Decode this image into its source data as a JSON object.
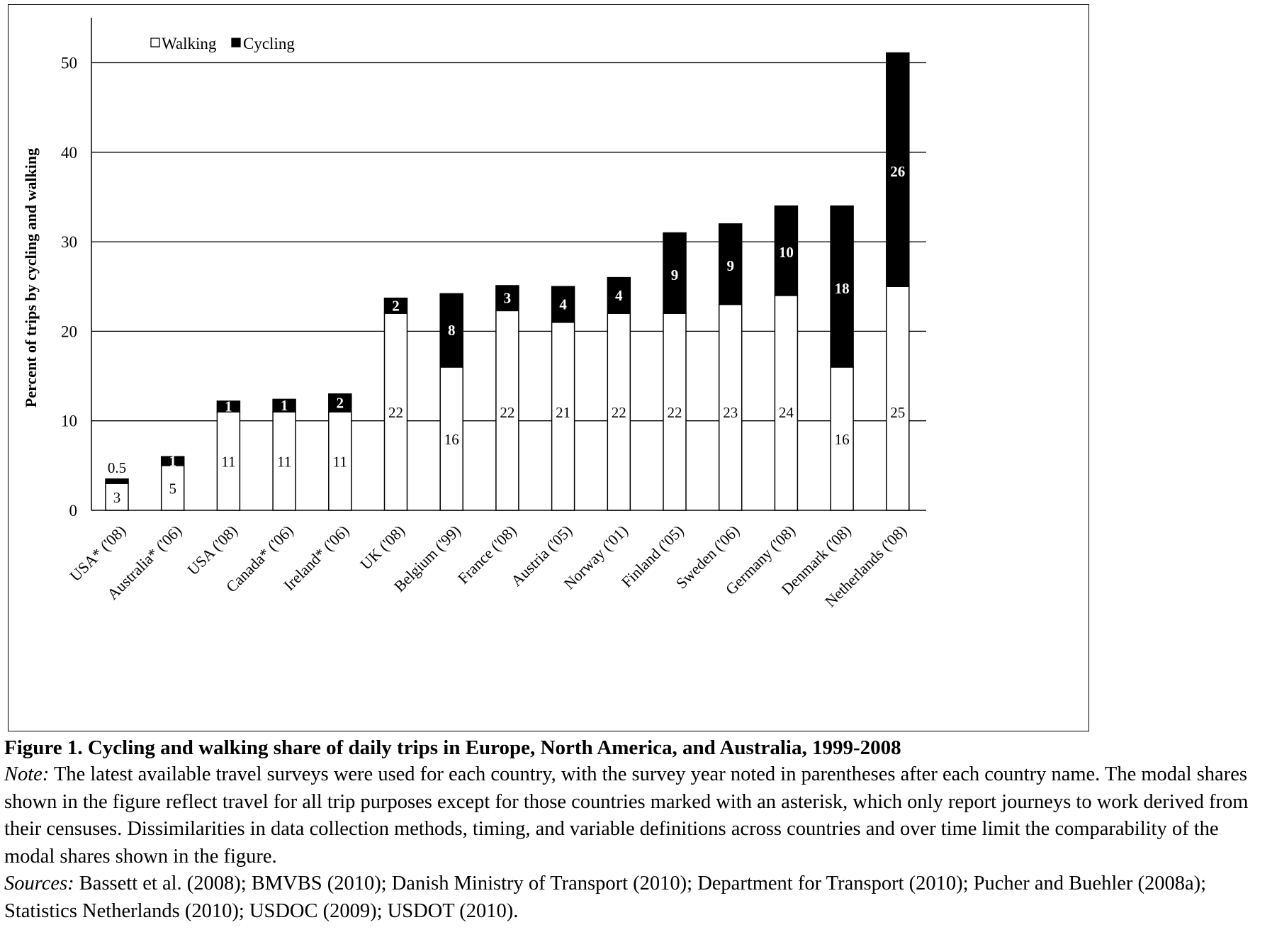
{
  "chart_data": {
    "type": "bar",
    "stacked": true,
    "categories": [
      "USA* ('08)",
      "Australia* ('06)",
      "USA ('08)",
      "Canada* ('06)",
      "Ireland* ('06)",
      "UK ('08)",
      "Belgium ('99)",
      "France ('08)",
      "Austria ('05)",
      "Norway ('01)",
      "Finland ('05)",
      "Sweden ('06)",
      "Germany ('08)",
      "Denmark ('08)",
      "Netherlands ('08)"
    ],
    "series": [
      {
        "name": "Walking",
        "color": "#ffffff",
        "values": [
          3,
          5,
          11,
          11,
          11,
          22,
          16,
          22.3,
          21,
          22,
          22,
          23,
          24,
          16,
          25
        ],
        "labels": [
          "3",
          "5",
          "11",
          "11",
          "11",
          "22",
          "16",
          "22",
          "21",
          "22",
          "22",
          "23",
          "24",
          "16",
          "25"
        ]
      },
      {
        "name": "Cycling",
        "color": "#000000",
        "values": [
          0.5,
          1,
          1.2,
          1.4,
          2,
          1.7,
          8.2,
          2.8,
          4,
          4,
          9,
          9,
          10,
          18,
          26.1
        ],
        "labels": [
          "0.5",
          "1",
          "1",
          "1",
          "2",
          "2",
          "8",
          "3",
          "4",
          "4",
          "9",
          "9",
          "10",
          "18",
          "26"
        ]
      }
    ],
    "ylabel": "Percent of trips by cycling and walking",
    "xlabel": "",
    "ylim": [
      0,
      55
    ],
    "yticks": [
      0,
      10,
      20,
      30,
      40,
      50
    ],
    "grid": true,
    "legend": "top-left"
  },
  "caption": {
    "title": "Figure 1. Cycling and walking share of daily trips in Europe, North America, and Australia, 1999-2008",
    "note_label": "Note:",
    "note_text": " The latest available travel surveys were used for each country, with the survey year noted in parentheses after each country name.  The modal shares shown in the figure reflect travel for all trip purposes except for those countries marked with an asterisk, which only report journeys to work derived from their censuses.  Dissimilarities in data collection methods, timing, and variable definitions across countries and over time limit the comparability of the modal shares shown in the figure.",
    "sources_label": "Sources:",
    "sources_text": " Bassett et al. (2008); BMVBS (2010); Danish Ministry of Transport (2010); Department for Transport (2010); Pucher and Buehler (2008a); Statistics Netherlands (2010); USDOC (2009); USDOT (2010)."
  }
}
